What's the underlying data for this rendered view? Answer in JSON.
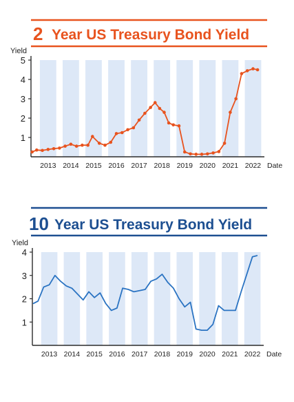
{
  "charts": [
    {
      "id": "two_year",
      "title_num": "2",
      "title_rest": "Year US Treasury Bond Yield",
      "colors": {
        "accent": "#e8531e",
        "band": "#dde8f7",
        "axis": "#2b2b2b",
        "text": "#1f1f1f"
      }
    },
    {
      "id": "ten_year",
      "title_num": "10",
      "title_rest": "Year US Treasury Bond Yield",
      "colors": {
        "accent": "#1d4f91",
        "band": "#dde8f7",
        "axis": "#2b2b2b",
        "text": "#1f1f1f",
        "line": "#2a73c2"
      }
    }
  ],
  "chart_data": [
    {
      "type": "line",
      "title": "2 Year US Treasury Bond Yield",
      "xlabel": "Date",
      "ylabel": "Yield",
      "x_ticks": [
        "2013",
        "2014",
        "2015",
        "2016",
        "2017",
        "2018",
        "2019",
        "2020",
        "2021",
        "2022"
      ],
      "y_ticks": [
        1,
        2,
        3,
        4,
        5
      ],
      "xlim": [
        2012.75,
        2023.0
      ],
      "ylim": [
        0,
        5
      ],
      "grid": false,
      "series": [
        {
          "marker": "circle",
          "x": [
            2012.8,
            2013.0,
            2013.25,
            2013.5,
            2013.75,
            2014.0,
            2014.25,
            2014.5,
            2014.75,
            2015.0,
            2015.25,
            2015.45,
            2015.75,
            2016.0,
            2016.25,
            2016.5,
            2016.75,
            2017.0,
            2017.25,
            2017.5,
            2017.75,
            2018.0,
            2018.2,
            2018.4,
            2018.6,
            2018.8,
            2019.0,
            2019.25,
            2019.5,
            2019.75,
            2020.0,
            2020.25,
            2020.5,
            2020.75,
            2021.0,
            2021.25,
            2021.5,
            2021.75,
            2022.0,
            2022.25,
            2022.5,
            2022.7
          ],
          "y": [
            0.25,
            0.35,
            0.33,
            0.38,
            0.42,
            0.45,
            0.55,
            0.65,
            0.55,
            0.6,
            0.6,
            1.05,
            0.7,
            0.6,
            0.75,
            1.2,
            1.25,
            1.4,
            1.5,
            1.9,
            2.25,
            2.55,
            2.8,
            2.5,
            2.3,
            1.75,
            1.65,
            1.6,
            0.25,
            0.15,
            0.13,
            0.13,
            0.15,
            0.2,
            0.27,
            0.7,
            2.3,
            3.0,
            4.3,
            4.45,
            4.55,
            4.5
          ]
        }
      ]
    },
    {
      "type": "line",
      "title": "10 Year US Treasury Bond Yield",
      "xlabel": "Date",
      "ylabel": "Yield",
      "x_ticks": [
        "2013",
        "2014",
        "2015",
        "2016",
        "2017",
        "2018",
        "2019",
        "2020",
        "2021",
        "2022"
      ],
      "y_ticks": [
        1,
        2,
        3,
        4
      ],
      "xlim": [
        2012.75,
        2023.0
      ],
      "ylim": [
        0,
        4
      ],
      "grid": false,
      "series": [
        {
          "marker": "none",
          "x": [
            2012.8,
            2013.0,
            2013.25,
            2013.5,
            2013.75,
            2014.0,
            2014.25,
            2014.5,
            2014.75,
            2015.0,
            2015.25,
            2015.5,
            2015.75,
            2016.0,
            2016.25,
            2016.5,
            2016.75,
            2017.0,
            2017.25,
            2017.5,
            2017.75,
            2018.0,
            2018.25,
            2018.5,
            2018.75,
            2019.0,
            2019.25,
            2019.5,
            2019.75,
            2020.0,
            2020.25,
            2020.5,
            2020.75,
            2021.0,
            2021.25,
            2021.5,
            2021.75,
            2022.0,
            2022.25,
            2022.5,
            2022.7
          ],
          "y": [
            1.8,
            1.9,
            2.5,
            2.6,
            3.0,
            2.75,
            2.55,
            2.45,
            2.2,
            1.95,
            2.3,
            2.05,
            2.25,
            1.8,
            1.5,
            1.6,
            2.45,
            2.4,
            2.3,
            2.35,
            2.4,
            2.75,
            2.85,
            3.05,
            2.7,
            2.45,
            2.0,
            1.65,
            1.85,
            0.7,
            0.65,
            0.65,
            0.9,
            1.7,
            1.5,
            1.5,
            1.5,
            2.3,
            3.05,
            3.8,
            3.85
          ]
        }
      ]
    }
  ]
}
